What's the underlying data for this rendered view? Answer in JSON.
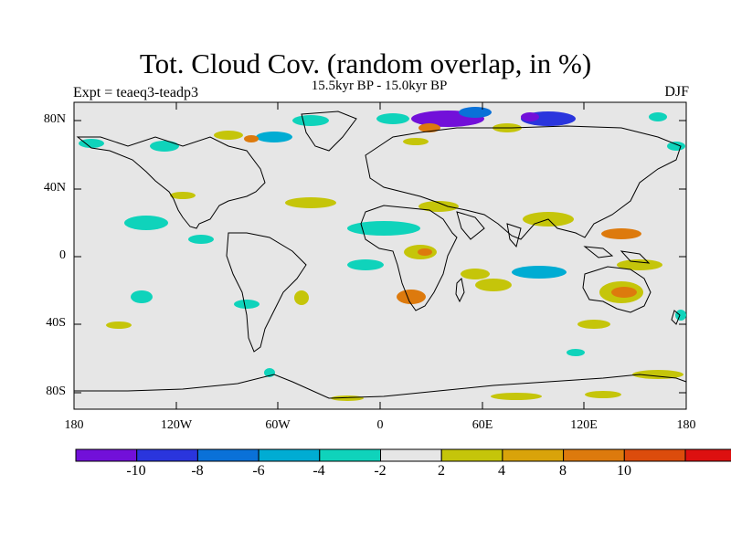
{
  "title": "Tot. Cloud Cov. (random overlap, in %)",
  "subtitle": "15.5kyr BP - 15.0kyr BP",
  "experiment_label": "Expt = teaeq3-teadp3",
  "season_label": "DJF",
  "lat_labels": [
    "80N",
    "40N",
    "0",
    "40S",
    "80S"
  ],
  "lon_labels": [
    "180",
    "120W",
    "60W",
    "0",
    "60E",
    "120E",
    "180"
  ],
  "colorbar": {
    "colors": [
      "#7210d9",
      "#2a35dd",
      "#0a71d8",
      "#00acd3",
      "#0fd3bb",
      "#e6e6e6",
      "#c5c50a",
      "#d9a30a",
      "#dd7a0d",
      "#dc4c0c",
      "#dd1010"
    ],
    "labels": [
      "-10",
      "-8",
      "-6",
      "-4",
      "-2",
      "2",
      "4",
      "8",
      "10"
    ]
  },
  "map_background": "#e6e6e6"
}
